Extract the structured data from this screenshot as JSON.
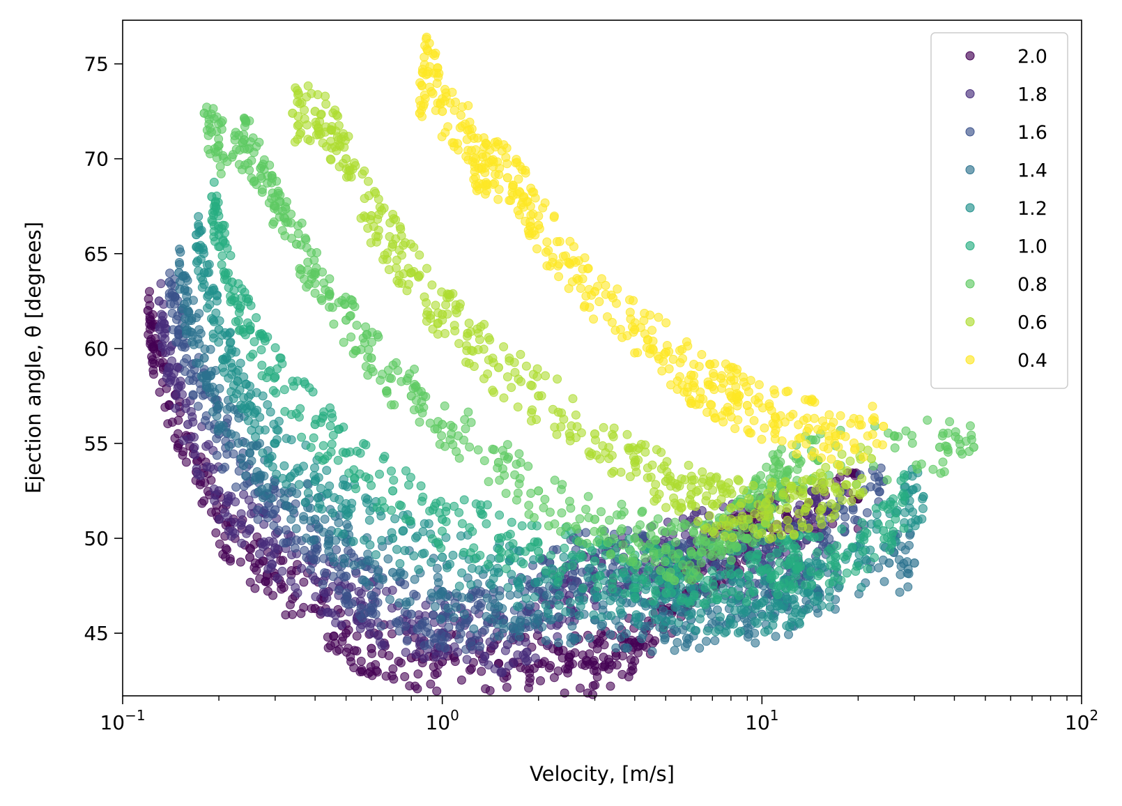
{
  "chart_data": {
    "type": "scatter",
    "title": "",
    "xlabel": "Velocity, [m/s]",
    "ylabel": "Ejection angle, θ [degrees]",
    "xscale": "log",
    "xlim": [
      0.1,
      100
    ],
    "ylim": [
      41.7,
      77.3
    ],
    "x_ticks": [
      {
        "value": 0.1,
        "base": "10",
        "exp": "−1"
      },
      {
        "value": 1,
        "base": "10",
        "exp": "0"
      },
      {
        "value": 10,
        "base": "10",
        "exp": "1"
      },
      {
        "value": 100,
        "base": "10",
        "exp": "2"
      }
    ],
    "y_ticks": [
      {
        "value": 45,
        "label": "45"
      },
      {
        "value": 50,
        "label": "50"
      },
      {
        "value": 55,
        "label": "55"
      },
      {
        "value": 60,
        "label": "60"
      },
      {
        "value": 65,
        "label": "65"
      },
      {
        "value": 70,
        "label": "70"
      },
      {
        "value": 75,
        "label": "75"
      }
    ],
    "grid": false,
    "legend_position": "top-right",
    "series": [
      {
        "name": "2.0",
        "color": "#440154",
        "points": [
          [
            0.12,
            62.0
          ],
          [
            0.125,
            60.0
          ],
          [
            0.14,
            57.0
          ],
          [
            0.17,
            53.5
          ],
          [
            0.2,
            51.0
          ],
          [
            0.25,
            49.0
          ],
          [
            0.3,
            48.0
          ],
          [
            0.4,
            46.3
          ],
          [
            0.5,
            45.0
          ],
          [
            0.6,
            44.2
          ],
          [
            0.8,
            43.7
          ],
          [
            1.0,
            43.5
          ],
          [
            1.5,
            43.4
          ],
          [
            2.0,
            43.4
          ],
          [
            2.5,
            43.3
          ],
          [
            3.0,
            43.3
          ],
          [
            3.5,
            43.8
          ],
          [
            4.0,
            44.5
          ],
          [
            5.0,
            46.2
          ],
          [
            6.0,
            47.8
          ],
          [
            7.0,
            48.8
          ],
          [
            8.0,
            49.5
          ],
          [
            9.0,
            50.2
          ],
          [
            10.0,
            50.6
          ],
          [
            12.0,
            51.1
          ],
          [
            15.0,
            51.5
          ],
          [
            20.0,
            52.1
          ]
        ]
      },
      {
        "name": "1.8",
        "color": "#472d7b",
        "points": [
          [
            0.13,
            62.5
          ],
          [
            0.14,
            59.0
          ],
          [
            0.16,
            56.0
          ],
          [
            0.2,
            52.5
          ],
          [
            0.25,
            50.5
          ],
          [
            0.3,
            49.5
          ],
          [
            0.4,
            47.8
          ],
          [
            0.5,
            46.8
          ],
          [
            0.6,
            46.2
          ],
          [
            0.8,
            45.2
          ],
          [
            1.0,
            45.0
          ],
          [
            1.3,
            44.6
          ],
          [
            1.6,
            44.4
          ],
          [
            2.0,
            45.2
          ],
          [
            2.5,
            47.0
          ],
          [
            3.0,
            48.0
          ],
          [
            4.0,
            48.7
          ],
          [
            5.0,
            49.4
          ],
          [
            6.0,
            49.9
          ],
          [
            8.0,
            50.2
          ],
          [
            10.0,
            50.4
          ],
          [
            13.0,
            50.8
          ],
          [
            16.0,
            51.5
          ]
        ]
      },
      {
        "name": "1.6",
        "color": "#3b528b",
        "points": [
          [
            0.14,
            63.5
          ],
          [
            0.15,
            61.0
          ],
          [
            0.17,
            58.5
          ],
          [
            0.2,
            55.5
          ],
          [
            0.25,
            53.0
          ],
          [
            0.3,
            51.5
          ],
          [
            0.4,
            49.5
          ],
          [
            0.5,
            48.0
          ],
          [
            0.6,
            47.0
          ],
          [
            0.8,
            46.0
          ],
          [
            1.0,
            45.8
          ],
          [
            1.2,
            45.7
          ],
          [
            1.5,
            45.7
          ],
          [
            2.0,
            47.2
          ],
          [
            2.5,
            48.6
          ],
          [
            3.0,
            49.0
          ],
          [
            4.0,
            48.8
          ],
          [
            5.0,
            48.5
          ],
          [
            6.0,
            48.2
          ],
          [
            8.0,
            48.0
          ],
          [
            10.0,
            48.3
          ],
          [
            12.0,
            48.8
          ],
          [
            15.0,
            50.0
          ],
          [
            18.0,
            51.5
          ],
          [
            24.0,
            53.0
          ]
        ]
      },
      {
        "name": "1.4",
        "color": "#2c728e",
        "points": [
          [
            0.15,
            64.0
          ],
          [
            0.16,
            62.0
          ],
          [
            0.18,
            59.5
          ],
          [
            0.2,
            57.0
          ],
          [
            0.25,
            54.5
          ],
          [
            0.3,
            53.0
          ],
          [
            0.4,
            51.0
          ],
          [
            0.5,
            49.8
          ],
          [
            0.7,
            48.2
          ],
          [
            1.0,
            47.2
          ],
          [
            1.5,
            46.4
          ],
          [
            2.0,
            46.0
          ],
          [
            3.0,
            45.7
          ],
          [
            4.0,
            45.6
          ],
          [
            5.0,
            45.6
          ],
          [
            6.0,
            45.7
          ],
          [
            8.0,
            45.8
          ],
          [
            10.0,
            46.0
          ],
          [
            12.0,
            46.4
          ],
          [
            15.0,
            47.2
          ],
          [
            25.0,
            48.7
          ],
          [
            30.0,
            48.7
          ]
        ]
      },
      {
        "name": "1.2",
        "color": "#21918c",
        "points": [
          [
            0.17,
            66.0
          ],
          [
            0.18,
            64.0
          ],
          [
            0.2,
            61.0
          ],
          [
            0.22,
            59.0
          ],
          [
            0.25,
            57.0
          ],
          [
            0.3,
            55.0
          ],
          [
            0.4,
            53.0
          ],
          [
            0.5,
            51.5
          ],
          [
            0.7,
            50.0
          ],
          [
            1.0,
            49.0
          ],
          [
            1.5,
            48.2
          ],
          [
            2.0,
            47.7
          ],
          [
            3.0,
            47.2
          ],
          [
            4.0,
            47.0
          ],
          [
            5.0,
            46.8
          ],
          [
            6.0,
            46.7
          ],
          [
            8.0,
            46.6
          ],
          [
            10.0,
            46.6
          ],
          [
            12.0,
            46.8
          ],
          [
            14.0,
            47.2
          ],
          [
            20.0,
            48.7
          ],
          [
            28.0,
            52.0
          ],
          [
            32.0,
            52.2
          ]
        ]
      },
      {
        "name": "1.0",
        "color": "#27ad81",
        "points": [
          [
            0.19,
            68.0
          ],
          [
            0.2,
            66.0
          ],
          [
            0.22,
            63.5
          ],
          [
            0.25,
            61.0
          ],
          [
            0.3,
            58.5
          ],
          [
            0.4,
            56.0
          ],
          [
            0.5,
            54.5
          ],
          [
            0.7,
            52.5
          ],
          [
            1.0,
            51.0
          ],
          [
            1.5,
            50.0
          ],
          [
            2.0,
            49.3
          ],
          [
            3.0,
            48.8
          ],
          [
            4.0,
            48.4
          ],
          [
            5.0,
            48.2
          ],
          [
            6.0,
            48.1
          ],
          [
            8.0,
            48.1
          ],
          [
            10.0,
            48.3
          ],
          [
            12.0,
            48.6
          ],
          [
            13.0,
            48.8
          ],
          [
            17.0,
            49.0
          ],
          [
            24.0,
            50.4
          ],
          [
            28.0,
            52.2
          ]
        ]
      },
      {
        "name": "0.8",
        "color": "#5ec962",
        "points": [
          [
            0.18,
            72.4
          ],
          [
            0.2,
            70.7
          ],
          [
            0.24,
            71.0
          ],
          [
            0.27,
            69.5
          ],
          [
            0.3,
            67.5
          ],
          [
            0.35,
            65.5
          ],
          [
            0.4,
            64.0
          ],
          [
            0.5,
            61.5
          ],
          [
            0.6,
            59.5
          ],
          [
            0.8,
            57.5
          ],
          [
            1.0,
            56.0
          ],
          [
            1.5,
            54.0
          ],
          [
            2.0,
            52.5
          ],
          [
            3.0,
            51.0
          ],
          [
            4.0,
            50.0
          ],
          [
            5.0,
            49.4
          ],
          [
            6.0,
            49.3
          ],
          [
            7.0,
            49.5
          ],
          [
            8.0,
            50.2
          ],
          [
            9.0,
            51.0
          ],
          [
            10.0,
            52.0
          ],
          [
            11.0,
            53.0
          ],
          [
            12.0,
            53.5
          ],
          [
            15.0,
            54.1
          ],
          [
            36.0,
            54.8
          ],
          [
            46.0,
            54.8
          ]
        ]
      },
      {
        "name": "0.6",
        "color": "#addc30",
        "points": [
          [
            0.34,
            72.4
          ],
          [
            0.4,
            72.5
          ],
          [
            0.45,
            71.5
          ],
          [
            0.5,
            70.0
          ],
          [
            0.6,
            67.0
          ],
          [
            0.7,
            65.5
          ],
          [
            0.8,
            64.0
          ],
          [
            1.0,
            61.8
          ],
          [
            1.2,
            60.8
          ],
          [
            1.5,
            59.0
          ],
          [
            2.0,
            57.5
          ],
          [
            3.0,
            55.5
          ],
          [
            4.0,
            54.0
          ],
          [
            5.0,
            53.0
          ],
          [
            6.0,
            52.3
          ],
          [
            7.0,
            51.8
          ],
          [
            8.0,
            51.6
          ],
          [
            10.0,
            51.5
          ],
          [
            12.0,
            51.6
          ],
          [
            14.0,
            51.9
          ],
          [
            17.0,
            52.7
          ],
          [
            22.0,
            54.2
          ]
        ]
      },
      {
        "name": "0.4",
        "color": "#fde725",
        "points": [
          [
            0.9,
            75.7
          ],
          [
            0.85,
            72.4
          ],
          [
            1.0,
            72.5
          ],
          [
            1.2,
            71.5
          ],
          [
            1.3,
            69.5
          ],
          [
            1.4,
            69.8
          ],
          [
            1.6,
            69.0
          ],
          [
            1.8,
            68.0
          ],
          [
            2.0,
            66.5
          ],
          [
            2.5,
            64.5
          ],
          [
            3.0,
            63.0
          ],
          [
            4.0,
            61.0
          ],
          [
            5.0,
            59.8
          ],
          [
            6.0,
            58.6
          ],
          [
            7.0,
            58.0
          ],
          [
            8.0,
            57.5
          ],
          [
            9.0,
            57.0
          ],
          [
            11.0,
            56.4
          ],
          [
            14.0,
            55.8
          ],
          [
            17.0,
            55.4
          ],
          [
            24.0,
            55.9
          ]
        ]
      }
    ]
  }
}
